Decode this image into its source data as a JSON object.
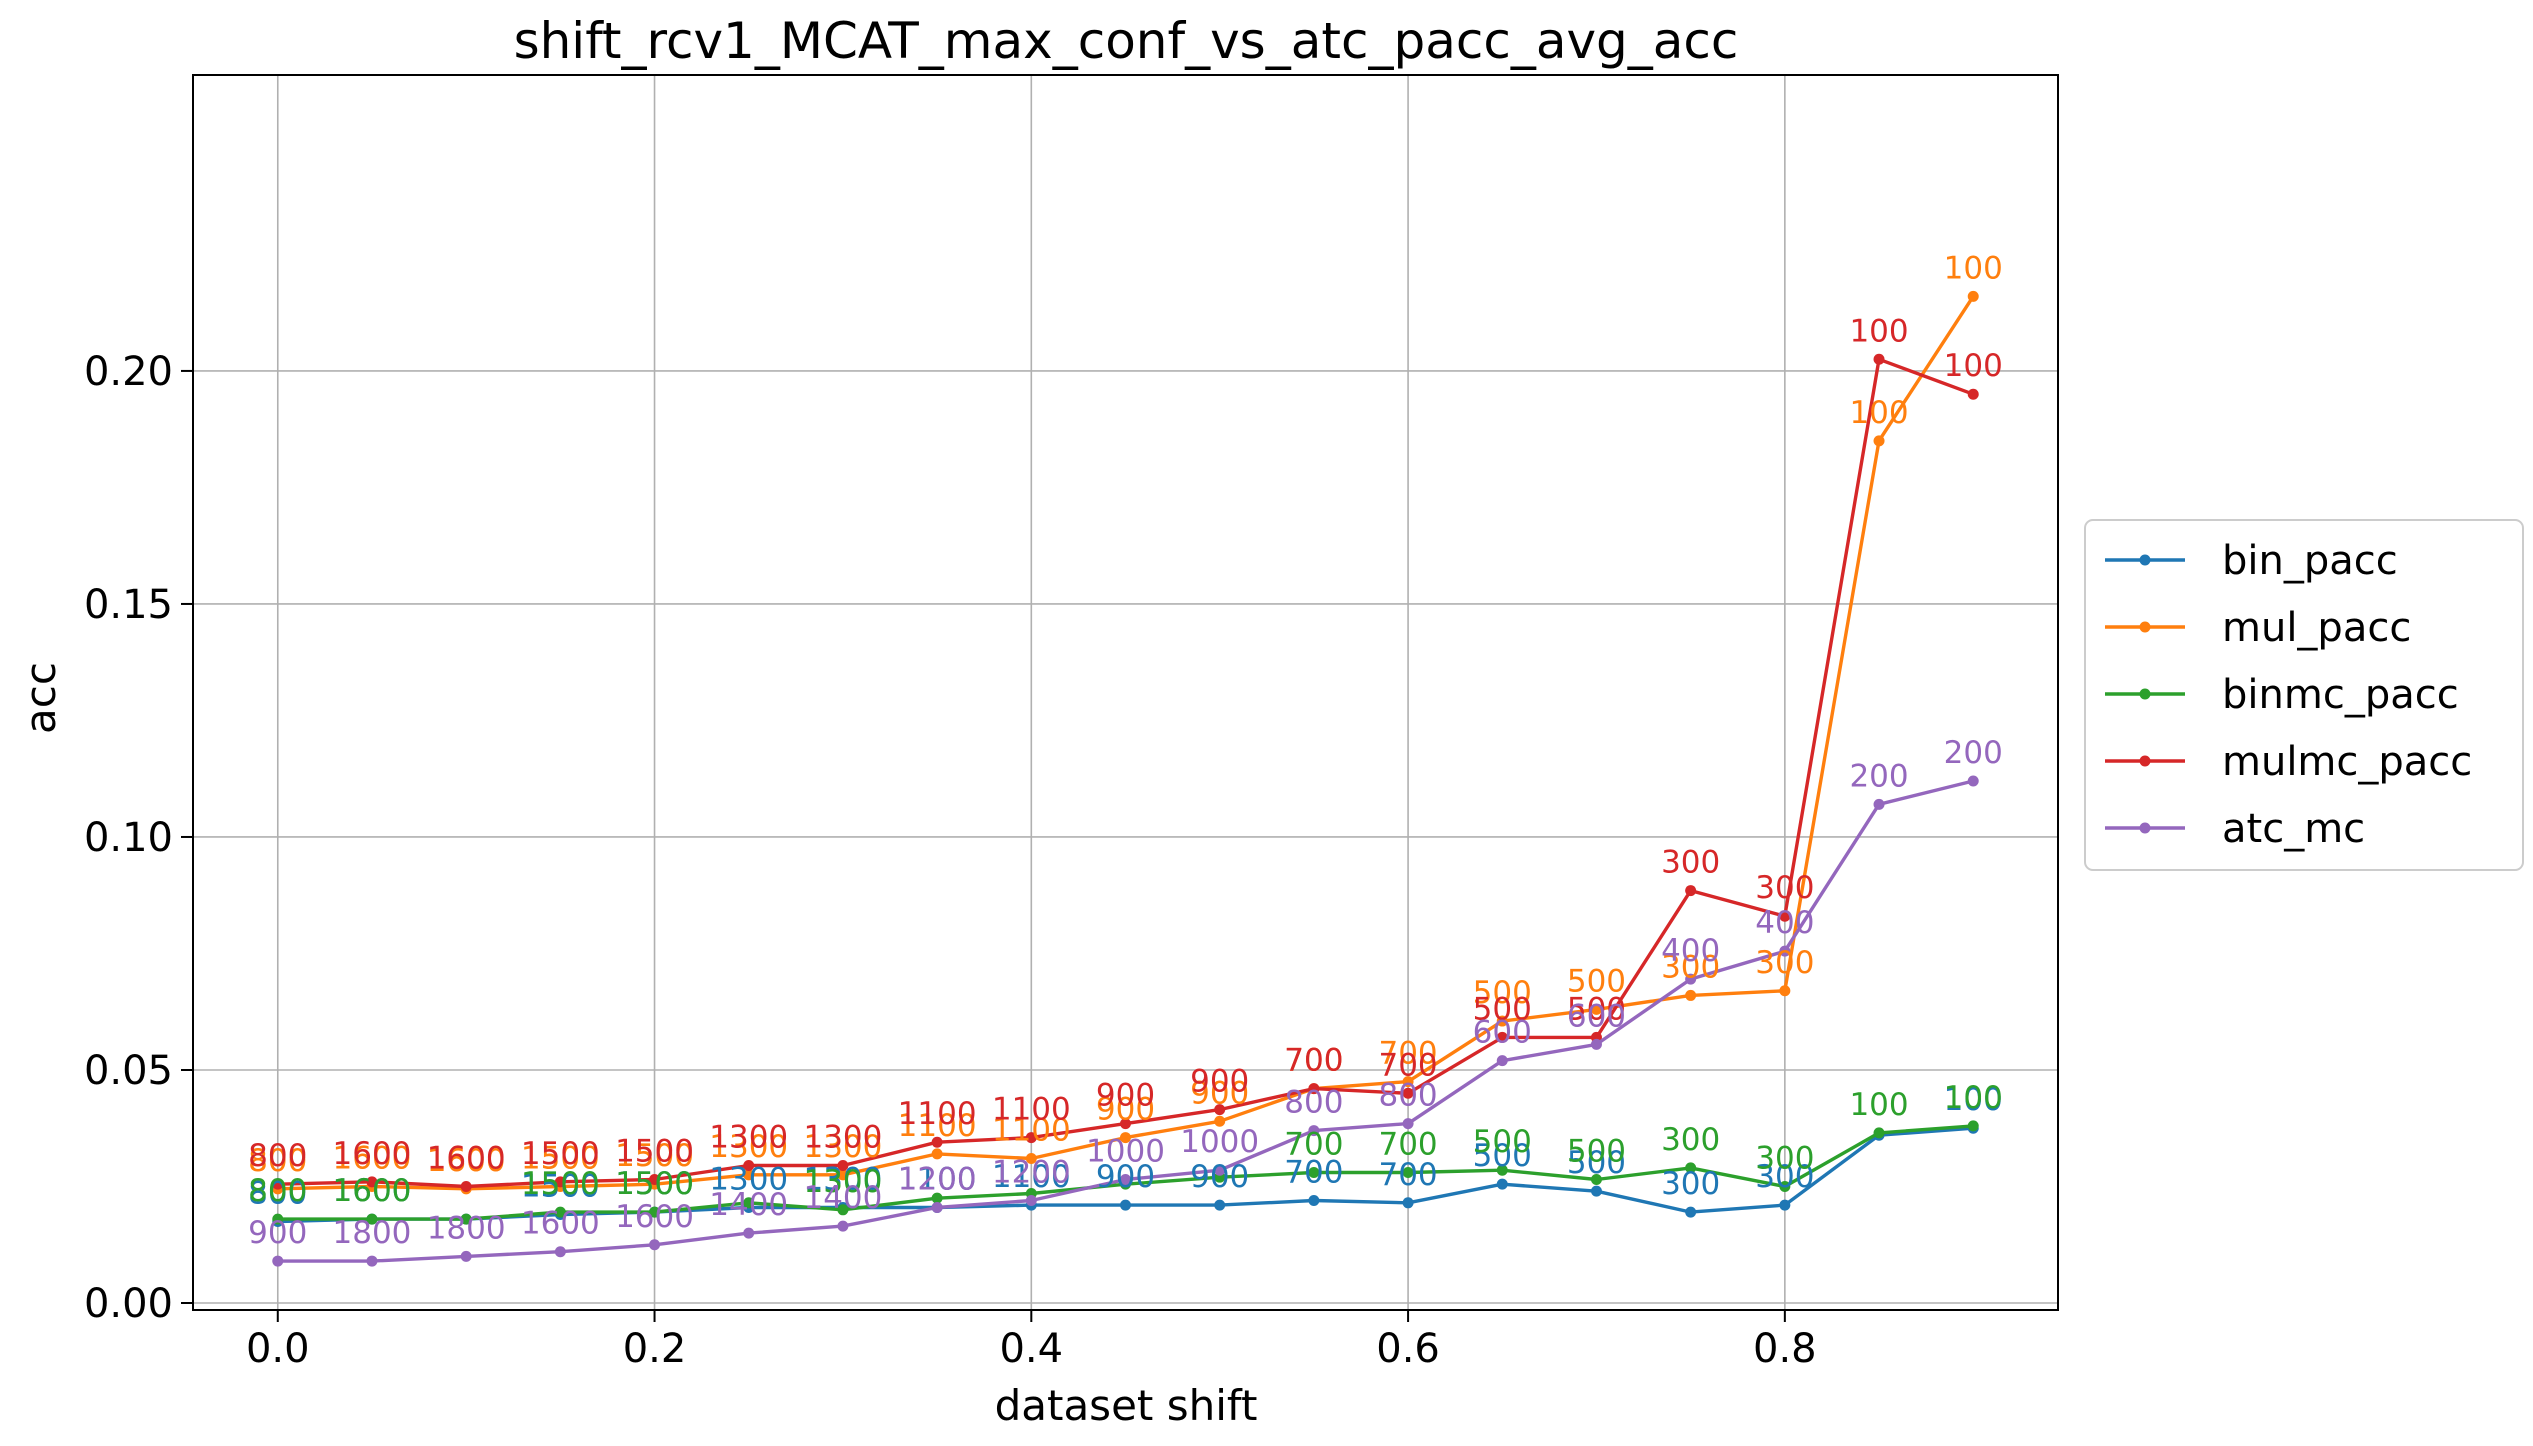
{
  "chart_data": {
    "type": "line",
    "title": "shift_rcv1_MCAT_max_conf_vs_atc_pacc_avg_acc",
    "xlabel": "dataset shift",
    "ylabel": "acc",
    "xlim": [
      -0.045,
      0.945
    ],
    "ylim": [
      -0.0015,
      0.2635
    ],
    "xticks": [
      "0.0",
      "0.2",
      "0.4",
      "0.6",
      "0.8"
    ],
    "xtick_values": [
      0.0,
      0.2,
      0.4,
      0.6,
      0.8
    ],
    "yticks": [
      "0.00",
      "0.05",
      "0.10",
      "0.15",
      "0.20"
    ],
    "ytick_values": [
      0.0,
      0.05,
      0.1,
      0.15,
      0.2
    ],
    "grid": true,
    "legend_position": "center-right outside",
    "x": [
      0.0,
      0.05,
      0.1,
      0.15,
      0.2,
      0.25,
      0.3,
      0.35,
      0.4,
      0.45,
      0.5,
      0.55,
      0.6,
      0.65,
      0.7,
      0.75,
      0.8,
      0.85,
      0.9
    ],
    "series": [
      {
        "name": "bin_pacc",
        "color": "#1f77b4",
        "values": [
          0.0175,
          0.018,
          0.018,
          0.019,
          0.0195,
          0.0205,
          0.0205,
          0.0205,
          0.021,
          0.021,
          0.021,
          0.022,
          0.0215,
          0.0255,
          0.024,
          0.0195,
          0.021,
          0.036,
          0.0375
        ],
        "labels": [
          "800",
          "1600",
          "",
          "1500",
          "1500",
          "1300",
          "1300",
          "1100",
          "1100",
          "900",
          "900",
          "700",
          "700",
          "500",
          "500",
          "300",
          "300",
          "",
          "100"
        ],
        "label_dy": [
          -30,
          -30,
          0,
          -30,
          -30,
          -30,
          -30,
          -30,
          -30,
          -30,
          -30,
          -30,
          -30,
          -30,
          -30,
          -30,
          -30,
          0,
          -30
        ]
      },
      {
        "name": "mul_pacc",
        "color": "#ff7f0e",
        "values": [
          0.0245,
          0.025,
          0.0245,
          0.025,
          0.0255,
          0.0275,
          0.0275,
          0.032,
          0.031,
          0.0355,
          0.039,
          0.046,
          0.0475,
          0.0605,
          0.063,
          0.066,
          0.067,
          0.185,
          0.216
        ],
        "labels": [
          "800",
          "1600",
          "1600",
          "1500",
          "1500",
          "1300",
          "1300",
          "1100",
          "1100",
          "900",
          "900",
          "700",
          "700",
          "500",
          "500",
          "300",
          "300",
          "100",
          "100"
        ],
        "label_dy": [
          -30,
          -30,
          -30,
          -30,
          -30,
          -30,
          -30,
          -30,
          -30,
          -30,
          -30,
          -30,
          -30,
          -30,
          -30,
          -30,
          -30,
          -30,
          -30
        ]
      },
      {
        "name": "binmc_pacc",
        "color": "#2ca02c",
        "values": [
          0.018,
          0.018,
          0.018,
          0.0195,
          0.0195,
          0.0215,
          0.02,
          0.0225,
          0.0235,
          0.0255,
          0.027,
          0.028,
          0.028,
          0.0285,
          0.0265,
          0.029,
          0.025,
          0.0365,
          0.038
        ],
        "labels": [
          "800",
          "1600",
          "",
          "1500",
          "1500",
          "",
          "1300",
          "",
          "",
          "",
          "",
          "700",
          "700",
          "500",
          "500",
          "300",
          "300",
          "100",
          "100"
        ],
        "label_dy": [
          -30,
          -30,
          0,
          -30,
          -30,
          0,
          -30,
          0,
          0,
          0,
          0,
          -30,
          -30,
          -30,
          -30,
          -30,
          -30,
          -30,
          -30
        ]
      },
      {
        "name": "mulmc_pacc",
        "color": "#d62728",
        "values": [
          0.0255,
          0.026,
          0.025,
          0.026,
          0.0265,
          0.0295,
          0.0295,
          0.0345,
          0.0355,
          0.0385,
          0.0415,
          0.046,
          0.045,
          0.057,
          0.057,
          0.0885,
          0.083,
          0.2025,
          0.195
        ],
        "labels": [
          "800",
          "1600",
          "1600",
          "1500",
          "1500",
          "1300",
          "1300",
          "1100",
          "1100",
          "900",
          "900",
          "700",
          "700",
          "500",
          "500",
          "300",
          "300",
          "100",
          "100"
        ],
        "label_dy": [
          -30,
          -30,
          -30,
          -30,
          -30,
          -30,
          -30,
          -30,
          -30,
          -30,
          -30,
          -30,
          -30,
          -30,
          -30,
          -30,
          -30,
          -30,
          -30
        ]
      },
      {
        "name": "atc_mc",
        "color": "#9467bd",
        "values": [
          0.009,
          0.009,
          0.01,
          0.011,
          0.0125,
          0.015,
          0.0165,
          0.0205,
          0.022,
          0.0265,
          0.0285,
          0.037,
          0.0385,
          0.052,
          0.0555,
          0.0695,
          0.0755,
          0.107,
          0.112
        ],
        "labels": [
          "900",
          "1800",
          "1800",
          "1600",
          "1600",
          "1400",
          "1400",
          "1200",
          "1200",
          "1000",
          "1000",
          "800",
          "800",
          "600",
          "600",
          "400",
          "400",
          "200",
          "200"
        ],
        "label_dy": [
          -30,
          -30,
          -30,
          -30,
          -30,
          -30,
          -30,
          -30,
          -30,
          -30,
          -30,
          -30,
          -30,
          -30,
          -30,
          -30,
          -30,
          -30,
          -30
        ]
      }
    ]
  }
}
